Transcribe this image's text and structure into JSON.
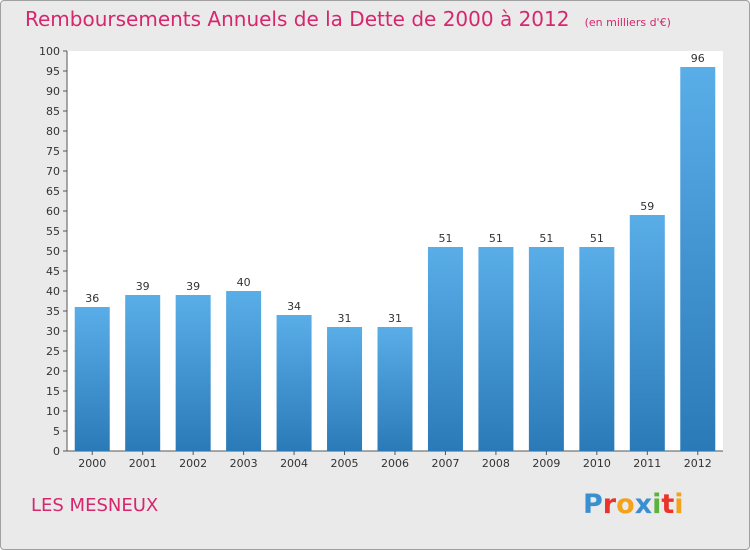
{
  "chart_data": {
    "type": "bar",
    "title": "Remboursements Annuels de la Dette de 2000 à 2012",
    "subtitle": "(en milliers d'€)",
    "categories": [
      "2000",
      "2001",
      "2002",
      "2003",
      "2004",
      "2005",
      "2006",
      "2007",
      "2008",
      "2009",
      "2010",
      "2011",
      "2012"
    ],
    "values": [
      36,
      39,
      39,
      40,
      34,
      31,
      31,
      51,
      51,
      51,
      51,
      59,
      96
    ],
    "ylim": [
      0,
      100
    ],
    "yticks": [
      0,
      5,
      10,
      15,
      20,
      25,
      30,
      35,
      40,
      45,
      50,
      55,
      60,
      65,
      70,
      75,
      80,
      85,
      90,
      95,
      100
    ],
    "xlabel": "",
    "ylabel": "",
    "grid": false,
    "bar_color_top": "#5aaee8",
    "bar_color_bottom": "#2a7ab8"
  },
  "footer": {
    "city": "LES MESNEUX",
    "logo_letters": [
      {
        "ch": "P",
        "color": "#3a8fd0"
      },
      {
        "ch": "r",
        "color": "#e8342a"
      },
      {
        "ch": "o",
        "color": "#f3a21c"
      },
      {
        "ch": "x",
        "color": "#3a8fd0"
      },
      {
        "ch": "i",
        "color": "#5cb33c"
      },
      {
        "ch": "t",
        "color": "#e8342a"
      },
      {
        "ch": "i",
        "color": "#f3a21c"
      }
    ]
  },
  "colors": {
    "accent": "#d6266e",
    "background": "#eaeaea"
  }
}
